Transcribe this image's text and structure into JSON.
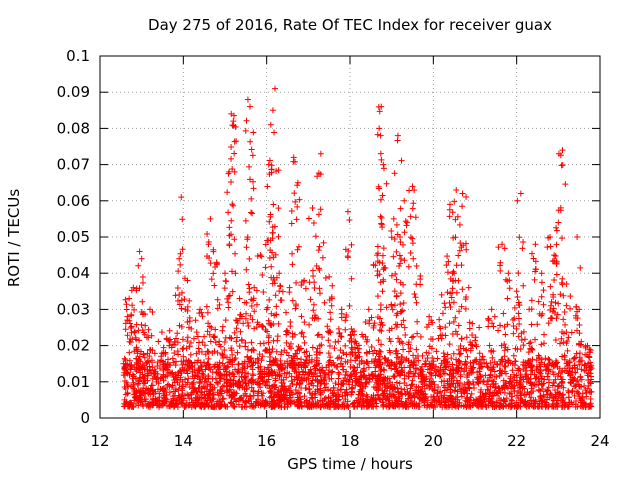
{
  "chart_data": {
    "type": "scatter",
    "title": "Day 275 of 2016, Rate Of TEC Index for receiver guax",
    "xlabel": "GPS time / hours",
    "ylabel": "ROTI / TECUs",
    "xlim": [
      12,
      24
    ],
    "ylim": [
      0,
      0.1
    ],
    "x_ticks": [
      "12",
      "14",
      "16",
      "18",
      "20",
      "22",
      "24"
    ],
    "y_ticks": [
      "0",
      "0.01",
      "0.02",
      "0.03",
      "0.04",
      "0.05",
      "0.06",
      "0.07",
      "0.08",
      "0.09",
      "0.1"
    ],
    "grid": true,
    "marker": "+",
    "color": "#ff0000",
    "x_range_of_points": [
      12.55,
      23.8
    ],
    "baseline_band": [
      0.003,
      0.016
    ],
    "series": [
      {
        "points": [
          [
            15.15,
            0.084
          ],
          [
            15.2,
            0.082
          ],
          [
            15.55,
            0.088
          ],
          [
            15.6,
            0.086
          ],
          [
            16.2,
            0.091
          ],
          [
            16.15,
            0.085
          ],
          [
            16.1,
            0.081
          ],
          [
            16.05,
            0.07
          ],
          [
            18.75,
            0.086
          ],
          [
            18.7,
            0.08
          ],
          [
            19.15,
            0.078
          ],
          [
            18.8,
            0.07
          ],
          [
            23.1,
            0.074
          ],
          [
            17.3,
            0.073
          ],
          [
            16.65,
            0.072
          ],
          [
            15.1,
            0.068
          ],
          [
            13.95,
            0.061
          ],
          [
            20.55,
            0.063
          ],
          [
            20.7,
            0.062
          ],
          [
            19.5,
            0.064
          ],
          [
            22.1,
            0.062
          ],
          [
            23.45,
            0.05
          ],
          [
            22.8,
            0.05
          ],
          [
            21.65,
            0.048
          ],
          [
            12.95,
            0.046
          ],
          [
            13.0,
            0.044
          ],
          [
            14.65,
            0.055
          ],
          [
            15.85,
            0.045
          ],
          [
            16.75,
            0.065
          ],
          [
            17.1,
            0.058
          ],
          [
            17.95,
            0.057
          ],
          [
            19.05,
            0.055
          ],
          [
            19.3,
            0.06
          ],
          [
            20.4,
            0.059
          ],
          [
            22.45,
            0.048
          ],
          [
            23.0,
            0.054
          ],
          [
            12.7,
            0.033
          ],
          [
            12.8,
            0.036
          ],
          [
            13.2,
            0.03
          ],
          [
            13.6,
            0.022
          ],
          [
            13.9,
            0.044
          ],
          [
            14.1,
            0.038
          ],
          [
            14.4,
            0.03
          ],
          [
            14.8,
            0.043
          ],
          [
            15.0,
            0.04
          ],
          [
            15.35,
            0.033
          ],
          [
            15.7,
            0.036
          ],
          [
            16.0,
            0.03
          ],
          [
            16.3,
            0.04
          ],
          [
            16.55,
            0.036
          ],
          [
            16.9,
            0.038
          ],
          [
            17.2,
            0.042
          ],
          [
            17.5,
            0.039
          ],
          [
            17.8,
            0.03
          ],
          [
            18.1,
            0.024
          ],
          [
            18.45,
            0.03
          ],
          [
            18.65,
            0.045
          ],
          [
            19.2,
            0.05
          ],
          [
            19.6,
            0.042
          ],
          [
            19.9,
            0.028
          ],
          [
            20.2,
            0.034
          ],
          [
            20.5,
            0.04
          ],
          [
            20.85,
            0.036
          ],
          [
            21.1,
            0.025
          ],
          [
            21.4,
            0.03
          ],
          [
            21.8,
            0.04
          ],
          [
            22.0,
            0.035
          ],
          [
            22.3,
            0.03
          ],
          [
            22.6,
            0.04
          ],
          [
            22.9,
            0.045
          ],
          [
            23.2,
            0.037
          ],
          [
            23.5,
            0.03
          ],
          [
            23.7,
            0.02
          ]
        ]
      }
    ]
  }
}
